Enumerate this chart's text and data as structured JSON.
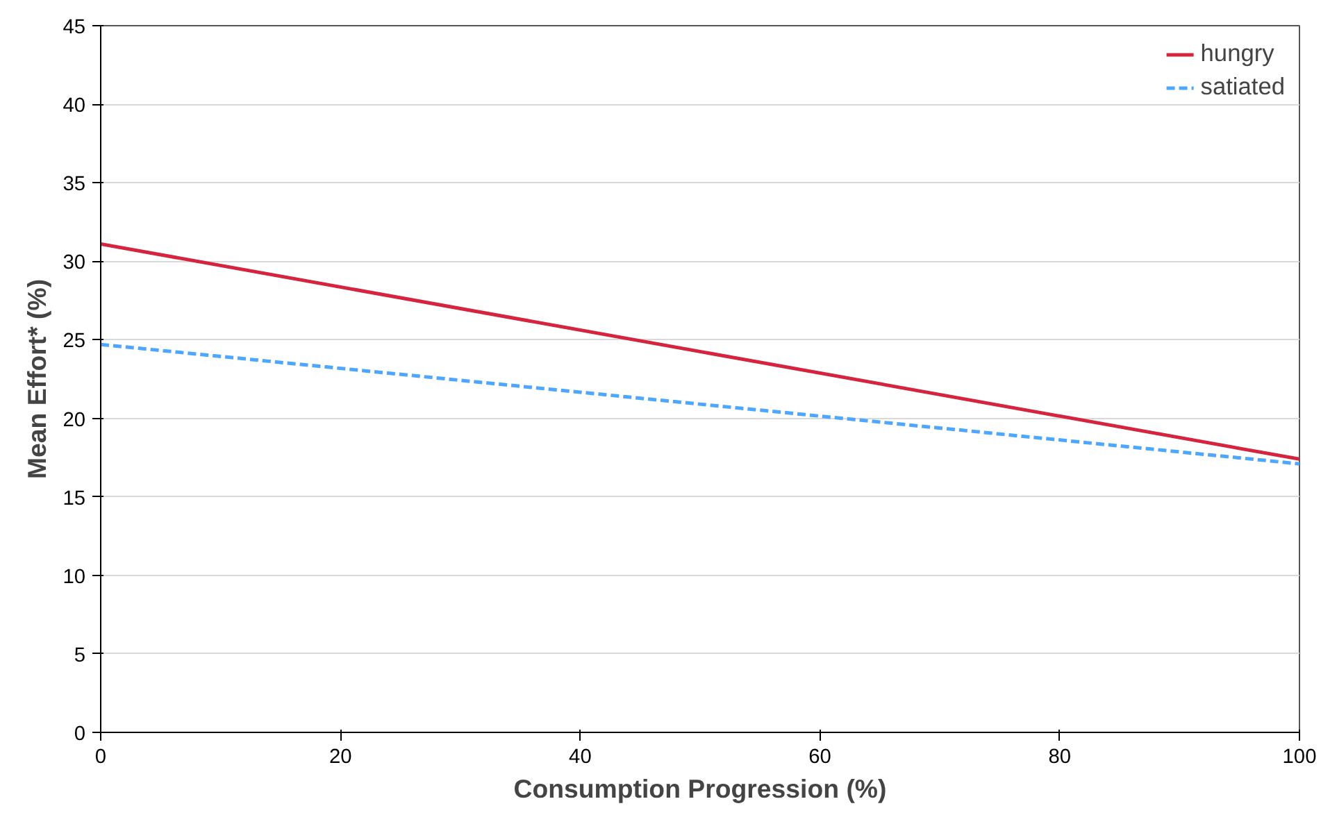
{
  "chart_data": {
    "type": "line",
    "xlabel": "Consumption Progression (%)",
    "ylabel": "Mean Effort* (%)",
    "x": [
      0,
      100
    ],
    "series": [
      {
        "name": "hungry",
        "color": "#d6243f",
        "values": [
          31.1,
          17.4
        ],
        "line_style": "solid"
      },
      {
        "name": "satiated",
        "color": "#4da6ff",
        "values": [
          24.7,
          17.1
        ],
        "line_style": "dashed"
      }
    ],
    "xlim": [
      0,
      100
    ],
    "xticks": [
      0,
      20,
      40,
      60,
      80,
      100
    ],
    "ylim": [
      0,
      45
    ],
    "yticks": [
      0,
      5,
      10,
      15,
      20,
      25,
      30,
      35,
      40,
      45
    ],
    "grid": "y",
    "legend": "top right",
    "marker": "none"
  }
}
